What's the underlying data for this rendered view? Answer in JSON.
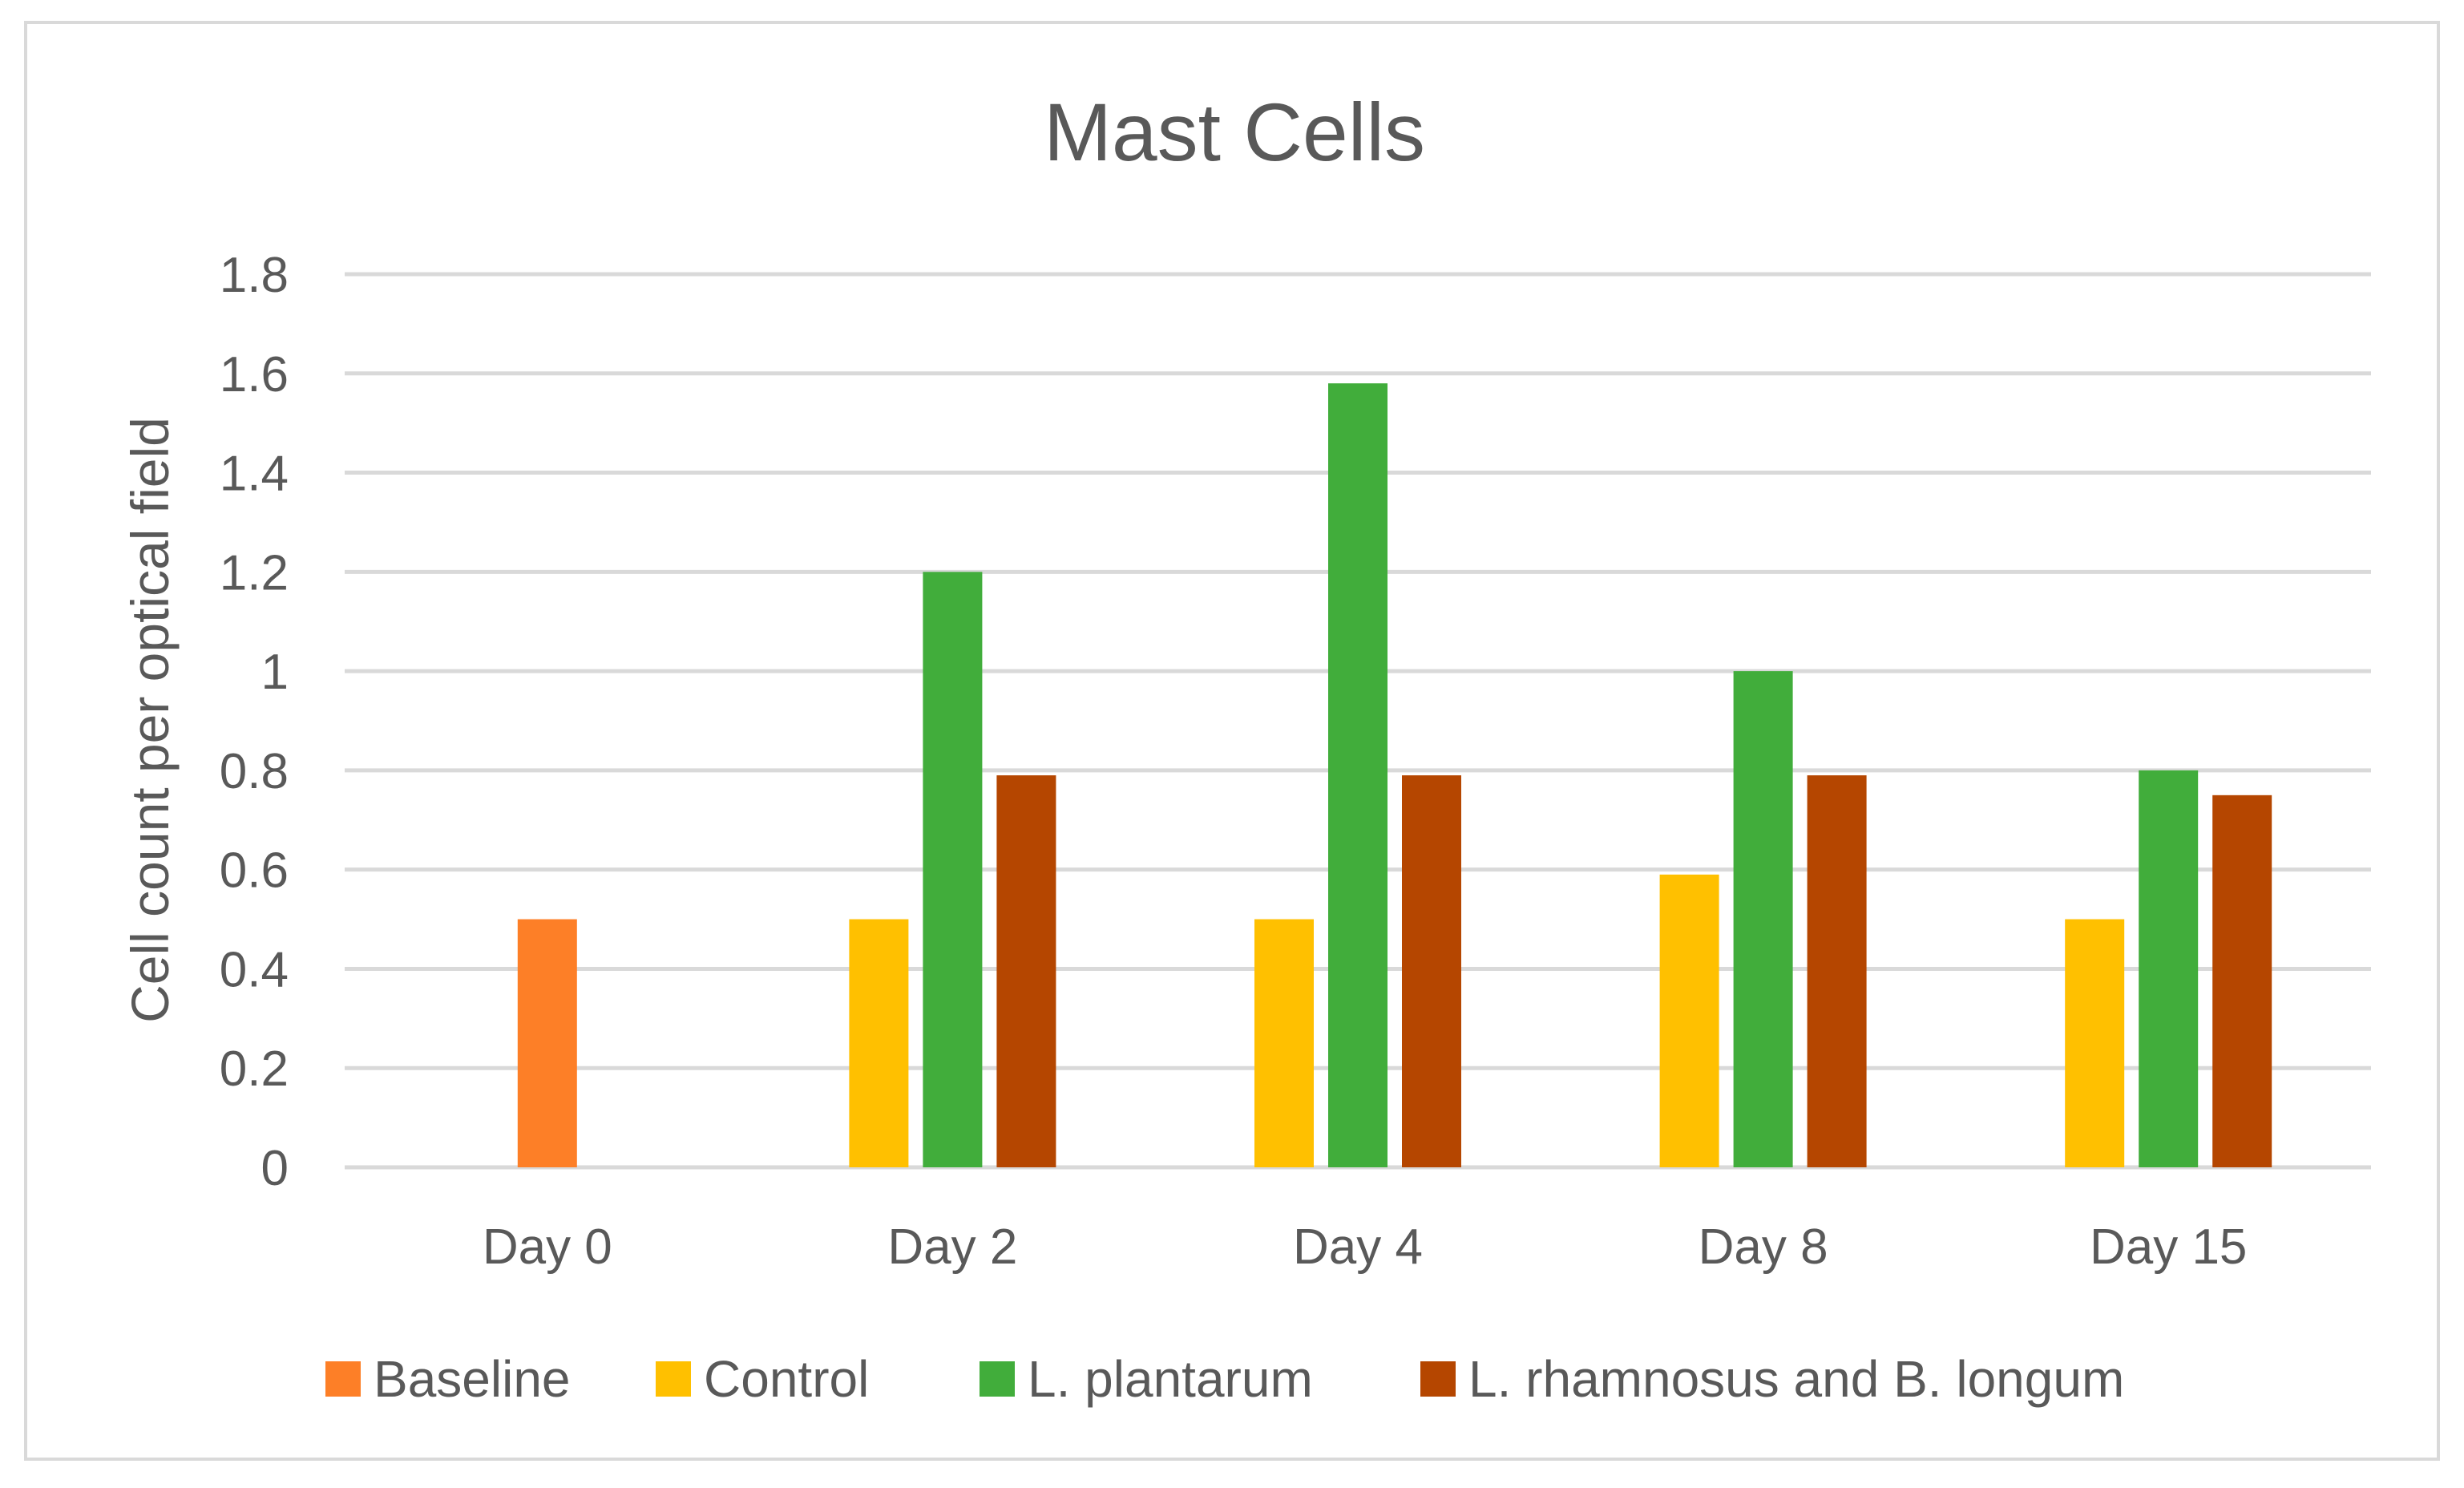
{
  "chart_data": {
    "type": "bar",
    "title": "Mast Cells",
    "xlabel": "",
    "ylabel": "Cell count per optical field",
    "ylim": [
      0,
      1.8
    ],
    "yticks": [
      "0",
      "0.2",
      "0.4",
      "0.6",
      "0.8",
      "1",
      "1.2",
      "1.4",
      "1.6",
      "1.8"
    ],
    "grid": true,
    "legend_position": "bottom",
    "categories": [
      "Day 0",
      "Day 2",
      "Day 4",
      "Day 8",
      "Day 15"
    ],
    "series": [
      {
        "name": "Baseline",
        "color": "#fd7f27",
        "values": [
          0.5,
          null,
          null,
          null,
          null
        ]
      },
      {
        "name": "Control",
        "color": "#ffc000",
        "values": [
          null,
          0.5,
          0.5,
          0.59,
          0.5
        ]
      },
      {
        "name": "L. plantarum",
        "color": "#41ad3b",
        "values": [
          null,
          1.2,
          1.58,
          1.0,
          0.8
        ]
      },
      {
        "name": "L. rhamnosus and B. longum",
        "color": "#b54600",
        "values": [
          null,
          0.79,
          0.79,
          0.79,
          0.75
        ]
      }
    ]
  }
}
